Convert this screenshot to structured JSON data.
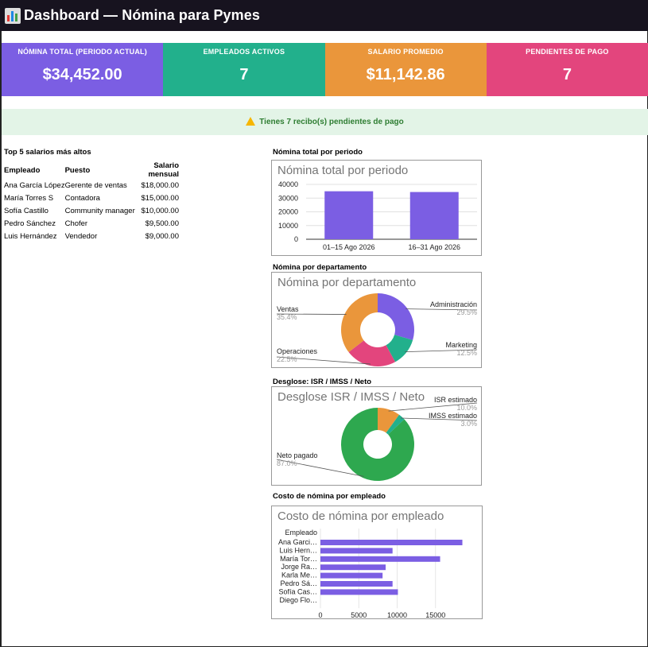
{
  "header": {
    "title": "Dashboard — Nómina para Pymes",
    "logo_icon": "bar-chart-icon"
  },
  "kpis": [
    {
      "label": "NÓMINA TOTAL (PERIODO ACTUAL)",
      "value": "$34,452.00",
      "color": "#7b5ee3"
    },
    {
      "label": "EMPLEADOS ACTIVOS",
      "value": "7",
      "color": "#22b08c"
    },
    {
      "label": "SALARIO PROMEDIO",
      "value": "$11,142.86",
      "color": "#ea963b"
    },
    {
      "label": "PENDIENTES DE PAGO",
      "value": "7",
      "color": "#e3457d"
    }
  ],
  "alert": {
    "icon": "warning-icon",
    "text": "Tienes 7 recibo(s) pendientes de pago"
  },
  "top_salaries": {
    "title": "Top 5 salarios más altos",
    "headers": [
      "Empleado",
      "Puesto",
      "Salario mensual"
    ],
    "rows": [
      [
        "Ana García López",
        "Gerente de ventas",
        "$18,000.00"
      ],
      [
        "María Torres S",
        "Contadora",
        "$15,000.00"
      ],
      [
        "Sofía Castillo",
        "Community manager",
        "$10,000.00"
      ],
      [
        "Pedro Sánchez",
        "Chofer",
        "$9,500.00"
      ],
      [
        "Luis Hernández",
        "Vendedor",
        "$9,000.00"
      ]
    ]
  },
  "chart_data": [
    {
      "type": "bar",
      "section_label": "Nómina total por periodo",
      "title": "Nómina total por periodo",
      "categories": [
        "01–15 Ago 2026",
        "16–31 Ago 2026"
      ],
      "values": [
        35000,
        34452
      ],
      "yticks": [
        "40000",
        "30000",
        "20000",
        "10000",
        "0"
      ],
      "ylim": [
        0,
        40000
      ],
      "color": "#7b5ee3"
    },
    {
      "type": "pie",
      "section_label": "Nómina por departamento",
      "title": "Nómina por departamento",
      "slices": [
        {
          "label": "Administración",
          "pct": "29.5%",
          "value": 29.5,
          "color": "#7b5ee3"
        },
        {
          "label": "Marketing",
          "pct": "12.5%",
          "value": 12.5,
          "color": "#22b08c"
        },
        {
          "label": "Operaciones",
          "pct": "22.5%",
          "value": 22.5,
          "color": "#e3457d"
        },
        {
          "label": "Ventas",
          "pct": "35.4%",
          "value": 35.4,
          "color": "#ea963b"
        }
      ]
    },
    {
      "type": "pie",
      "section_label": "Desglose: ISR / IMSS / Neto",
      "title": "Desglose ISR / IMSS / Neto",
      "slices": [
        {
          "label": "ISR estimado",
          "pct": "10.0%",
          "value": 10.0,
          "color": "#ea963b"
        },
        {
          "label": "IMSS estimado",
          "pct": "3.0%",
          "value": 3.0,
          "color": "#22b08c"
        },
        {
          "label": "Neto pagado",
          "pct": "87.0%",
          "value": 87.0,
          "color": "#2ea84f"
        }
      ]
    },
    {
      "type": "bar",
      "orientation": "horizontal",
      "section_label": "Costo de nómina por empleado",
      "title": "Costo de nómina por empleado",
      "axis_label": "Empleado",
      "categories": [
        "Ana Garci…",
        "Luis Hern…",
        "María Tor…",
        "Jorge Ra…",
        "Karla Me…",
        "Pedro Sá…",
        "Sofía Cas…",
        "Diego Flo…"
      ],
      "values": [
        18500,
        9400,
        15600,
        8500,
        8100,
        9400,
        10100,
        0
      ],
      "xticks": [
        "0",
        "5000",
        "10000",
        "15000"
      ],
      "xlim": [
        0,
        20000
      ],
      "color": "#7b5ee3"
    }
  ]
}
